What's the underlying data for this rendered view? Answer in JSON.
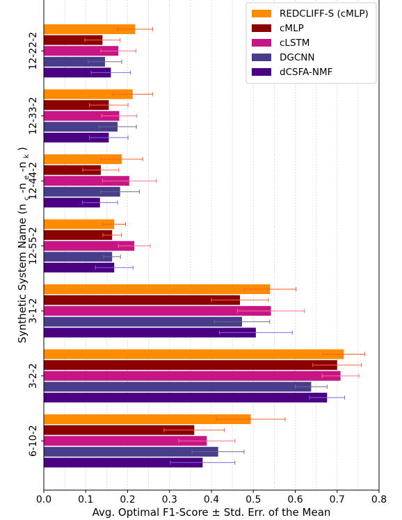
{
  "chart_data": {
    "type": "bar",
    "orientation": "horizontal",
    "title": "",
    "xlabel": "Avg. Optimal F1-Score ± Std. Err. of the Mean",
    "ylabel": "Synthetic System Name",
    "ylabel_subscript_parts": [
      "(n",
      "c",
      "-n",
      "e",
      "-n",
      "k",
      ")"
    ],
    "xlim": [
      0.0,
      0.8
    ],
    "xticks": [
      "0.0",
      "0.1",
      "0.2",
      "0.3",
      "0.4",
      "0.5",
      "0.6",
      "0.7",
      "0.8"
    ],
    "grid": "vertical dotted",
    "legend_position": "top-right",
    "categories": [
      "12-22-2",
      "12-33-2",
      "12-44-2",
      "12-55-2",
      "3-1-2",
      "3-2-2",
      "6-10-2"
    ],
    "series": [
      {
        "name": "REDCLIFF-S (cMLP)",
        "color": "#ff8c00",
        "values": [
          0.218,
          0.212,
          0.186,
          0.168,
          0.54,
          0.716,
          0.494
        ],
        "errors": [
          0.042,
          0.048,
          0.05,
          0.027,
          0.062,
          0.05,
          0.082
        ]
      },
      {
        "name": "cMLP",
        "color": "#8b0000",
        "values": [
          0.14,
          0.155,
          0.136,
          0.163,
          0.468,
          0.7,
          0.359
        ],
        "errors": [
          0.042,
          0.046,
          0.043,
          0.022,
          0.068,
          0.058,
          0.072
        ]
      },
      {
        "name": "cLSTM",
        "color": "#c71585",
        "values": [
          0.178,
          0.18,
          0.204,
          0.216,
          0.542,
          0.708,
          0.389
        ],
        "errors": [
          0.042,
          0.042,
          0.064,
          0.038,
          0.08,
          0.044,
          0.067
        ]
      },
      {
        "name": "DGCNN",
        "color": "#483d8b",
        "values": [
          0.146,
          0.176,
          0.182,
          0.163,
          0.473,
          0.638,
          0.416
        ],
        "errors": [
          0.04,
          0.045,
          0.046,
          0.02,
          0.066,
          0.038,
          0.062
        ]
      },
      {
        "name": "dCSFA-NMF",
        "color": "#4b0082",
        "values": [
          0.16,
          0.155,
          0.134,
          0.168,
          0.506,
          0.676,
          0.379
        ],
        "errors": [
          0.047,
          0.046,
          0.042,
          0.045,
          0.087,
          0.042,
          0.077
        ]
      }
    ]
  }
}
